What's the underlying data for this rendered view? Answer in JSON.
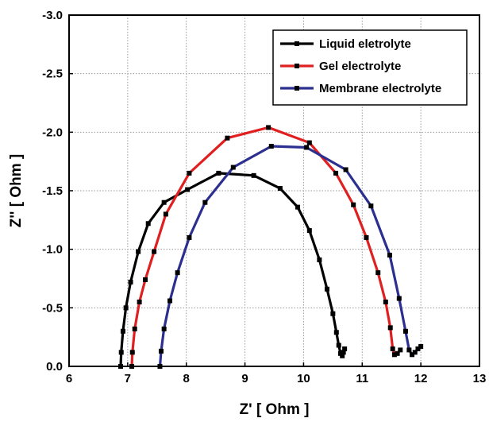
{
  "chart_data": {
    "type": "line",
    "xlabel": "Z' [ Ohm ]",
    "ylabel": "Z'' [ Ohm ]",
    "xlim": [
      6,
      13
    ],
    "ylim": [
      0.0,
      -3.0
    ],
    "xticks": [
      "6",
      "7",
      "8",
      "9",
      "10",
      "11",
      "12",
      "13"
    ],
    "yticks": [
      "0.0",
      "-0.5",
      "-1.0",
      "-1.5",
      "-2.0",
      "-2.5",
      "-3.0"
    ],
    "grid": true,
    "legend_position": "top-right",
    "series": [
      {
        "name": "Liquid eletrolyte",
        "color": "#000000",
        "points": [
          [
            6.88,
            0.0
          ],
          [
            6.89,
            -0.12
          ],
          [
            6.92,
            -0.3
          ],
          [
            6.97,
            -0.5
          ],
          [
            7.05,
            -0.72
          ],
          [
            7.18,
            -0.98
          ],
          [
            7.35,
            -1.22
          ],
          [
            7.62,
            -1.4
          ],
          [
            8.02,
            -1.51
          ],
          [
            8.55,
            -1.65
          ],
          [
            9.15,
            -1.63
          ],
          [
            9.6,
            -1.52
          ],
          [
            9.9,
            -1.36
          ],
          [
            10.1,
            -1.16
          ],
          [
            10.27,
            -0.91
          ],
          [
            10.4,
            -0.66
          ],
          [
            10.5,
            -0.45
          ],
          [
            10.56,
            -0.29
          ],
          [
            10.6,
            -0.18
          ],
          [
            10.63,
            -0.11
          ],
          [
            10.66,
            -0.09
          ],
          [
            10.68,
            -0.12
          ],
          [
            10.7,
            -0.15
          ]
        ]
      },
      {
        "name": "Gel electrolyte",
        "color": "#e02020",
        "points": [
          [
            7.07,
            0.0
          ],
          [
            7.08,
            -0.12
          ],
          [
            7.12,
            -0.32
          ],
          [
            7.2,
            -0.55
          ],
          [
            7.3,
            -0.74
          ],
          [
            7.45,
            -0.98
          ],
          [
            7.65,
            -1.3
          ],
          [
            8.05,
            -1.65
          ],
          [
            8.7,
            -1.95
          ],
          [
            9.4,
            -2.04
          ],
          [
            10.1,
            -1.91
          ],
          [
            10.55,
            -1.65
          ],
          [
            10.85,
            -1.38
          ],
          [
            11.07,
            -1.1
          ],
          [
            11.27,
            -0.8
          ],
          [
            11.4,
            -0.55
          ],
          [
            11.48,
            -0.33
          ],
          [
            11.52,
            -0.15
          ],
          [
            11.55,
            -0.1
          ],
          [
            11.6,
            -0.11
          ],
          [
            11.65,
            -0.14
          ]
        ]
      },
      {
        "name": "Membrane electrolyte",
        "color": "#2b2f8f",
        "points": [
          [
            7.55,
            0.0
          ],
          [
            7.57,
            -0.13
          ],
          [
            7.62,
            -0.32
          ],
          [
            7.72,
            -0.56
          ],
          [
            7.85,
            -0.8
          ],
          [
            8.05,
            -1.1
          ],
          [
            8.32,
            -1.4
          ],
          [
            8.8,
            -1.7
          ],
          [
            9.45,
            -1.88
          ],
          [
            10.05,
            -1.87
          ],
          [
            10.72,
            -1.68
          ],
          [
            11.15,
            -1.37
          ],
          [
            11.47,
            -0.95
          ],
          [
            11.63,
            -0.58
          ],
          [
            11.74,
            -0.3
          ],
          [
            11.8,
            -0.14
          ],
          [
            11.85,
            -0.1
          ],
          [
            11.9,
            -0.12
          ],
          [
            11.95,
            -0.15
          ],
          [
            12.0,
            -0.17
          ]
        ]
      }
    ]
  }
}
